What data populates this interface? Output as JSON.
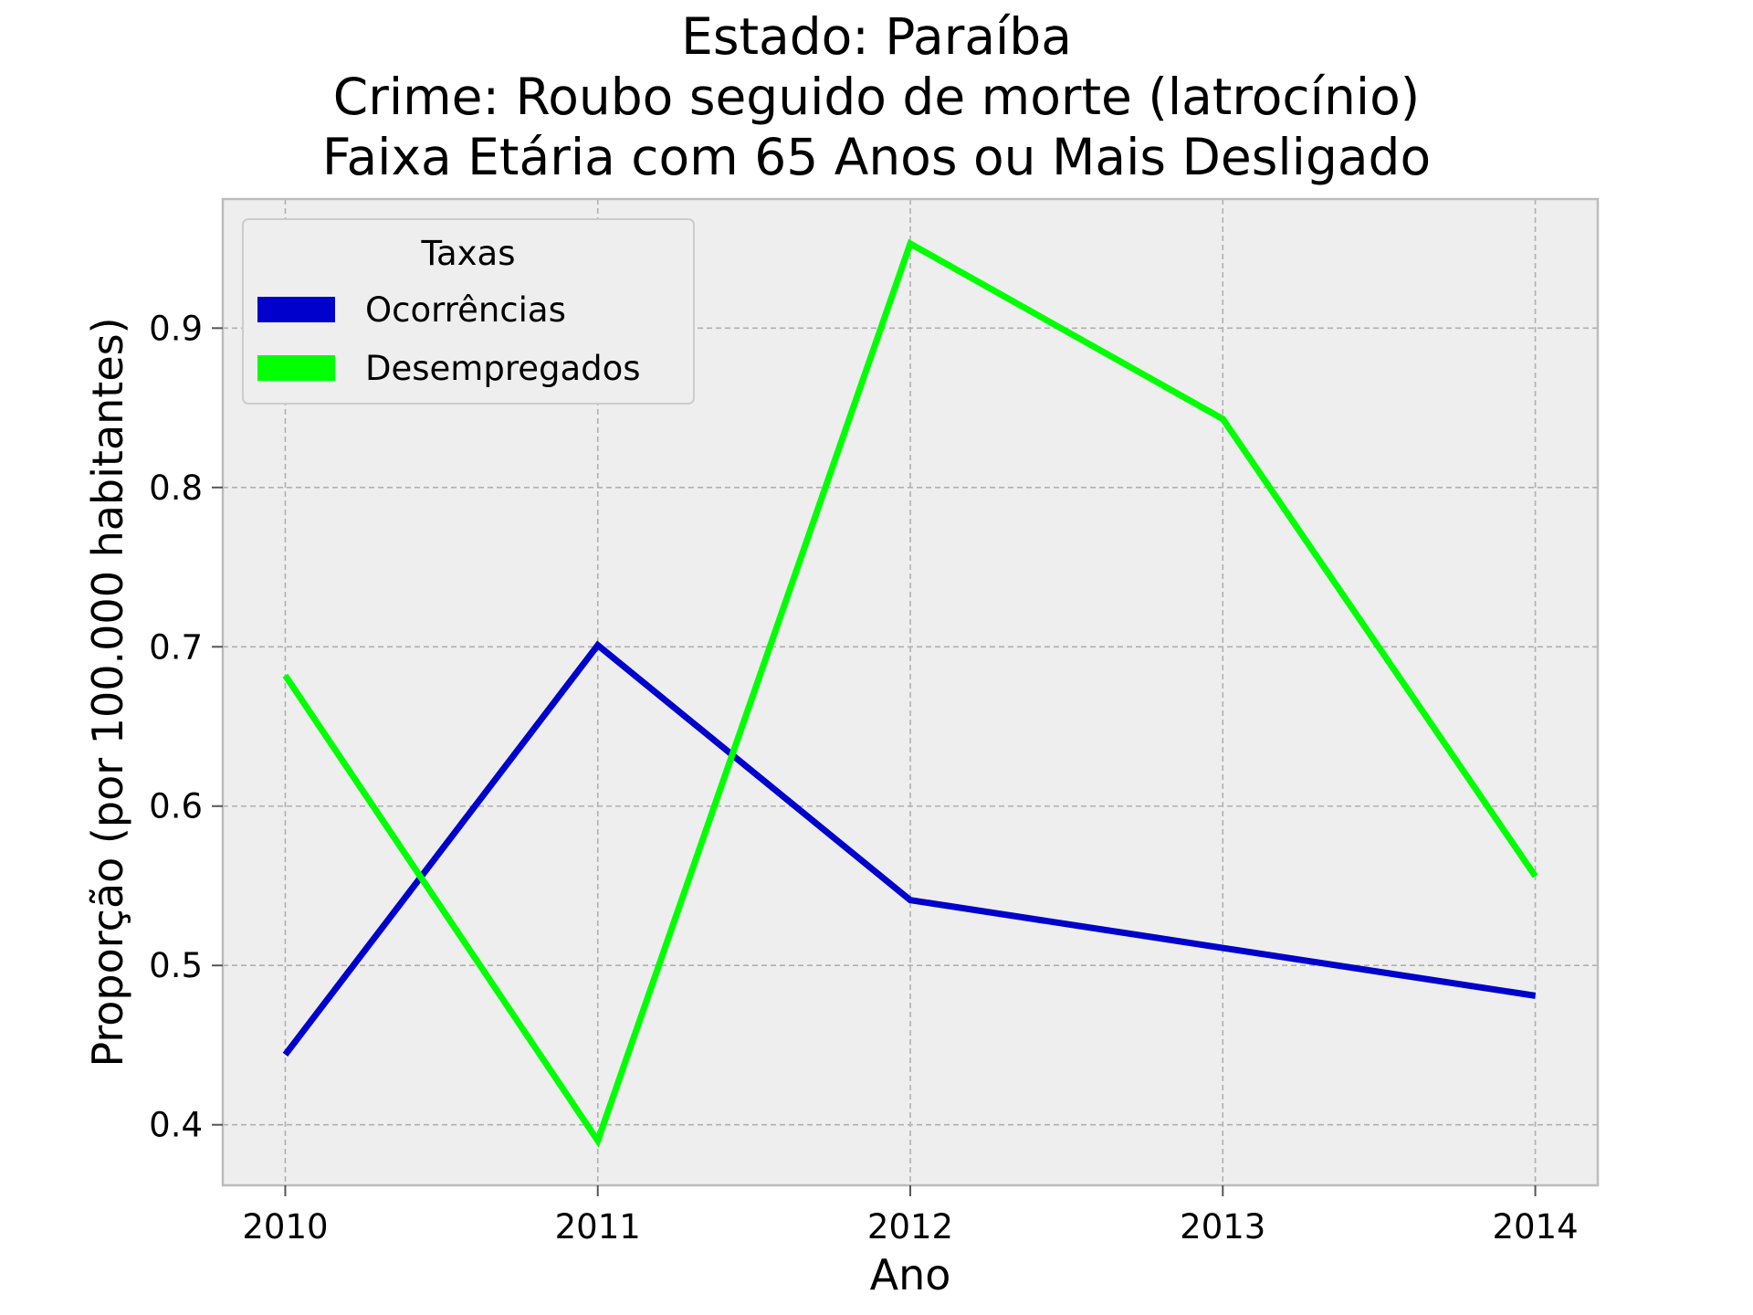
{
  "chart_data": {
    "type": "line",
    "title_lines": [
      "Estado: Paraíba",
      "Crime: Roubo seguido de morte (latrocínio)",
      "Faixa Etária com 65 Anos ou Mais   Desligado"
    ],
    "xlabel": "Ano",
    "ylabel": "Proporção (por 100.000 habitantes)",
    "x": [
      2010,
      2011,
      2012,
      2013,
      2014
    ],
    "x_tick_labels": [
      "2010",
      "2011",
      "2012",
      "2013",
      "2014"
    ],
    "y_ticks": [
      0.4,
      0.5,
      0.6,
      0.7,
      0.8,
      0.9
    ],
    "y_tick_labels": [
      "0.4",
      "0.5",
      "0.6",
      "0.7",
      "0.8",
      "0.9"
    ],
    "xlim": [
      2009.8,
      2014.2
    ],
    "ylim": [
      0.362,
      0.981
    ],
    "grid": true,
    "legend": {
      "title": "Taxas",
      "placement": "upper-left"
    },
    "series": [
      {
        "name": "Ocorrências",
        "color": "#0000cc",
        "values": [
          0.444,
          0.701,
          0.541,
          0.511,
          0.481
        ]
      },
      {
        "name": "Desempregados",
        "color": "#00ff00",
        "values": [
          0.682,
          0.39,
          0.953,
          0.843,
          0.556
        ]
      }
    ],
    "colors": {
      "plot_background": "#eeeeee",
      "grid": "#b0b0b0",
      "frame": "#bcbcbc"
    }
  }
}
